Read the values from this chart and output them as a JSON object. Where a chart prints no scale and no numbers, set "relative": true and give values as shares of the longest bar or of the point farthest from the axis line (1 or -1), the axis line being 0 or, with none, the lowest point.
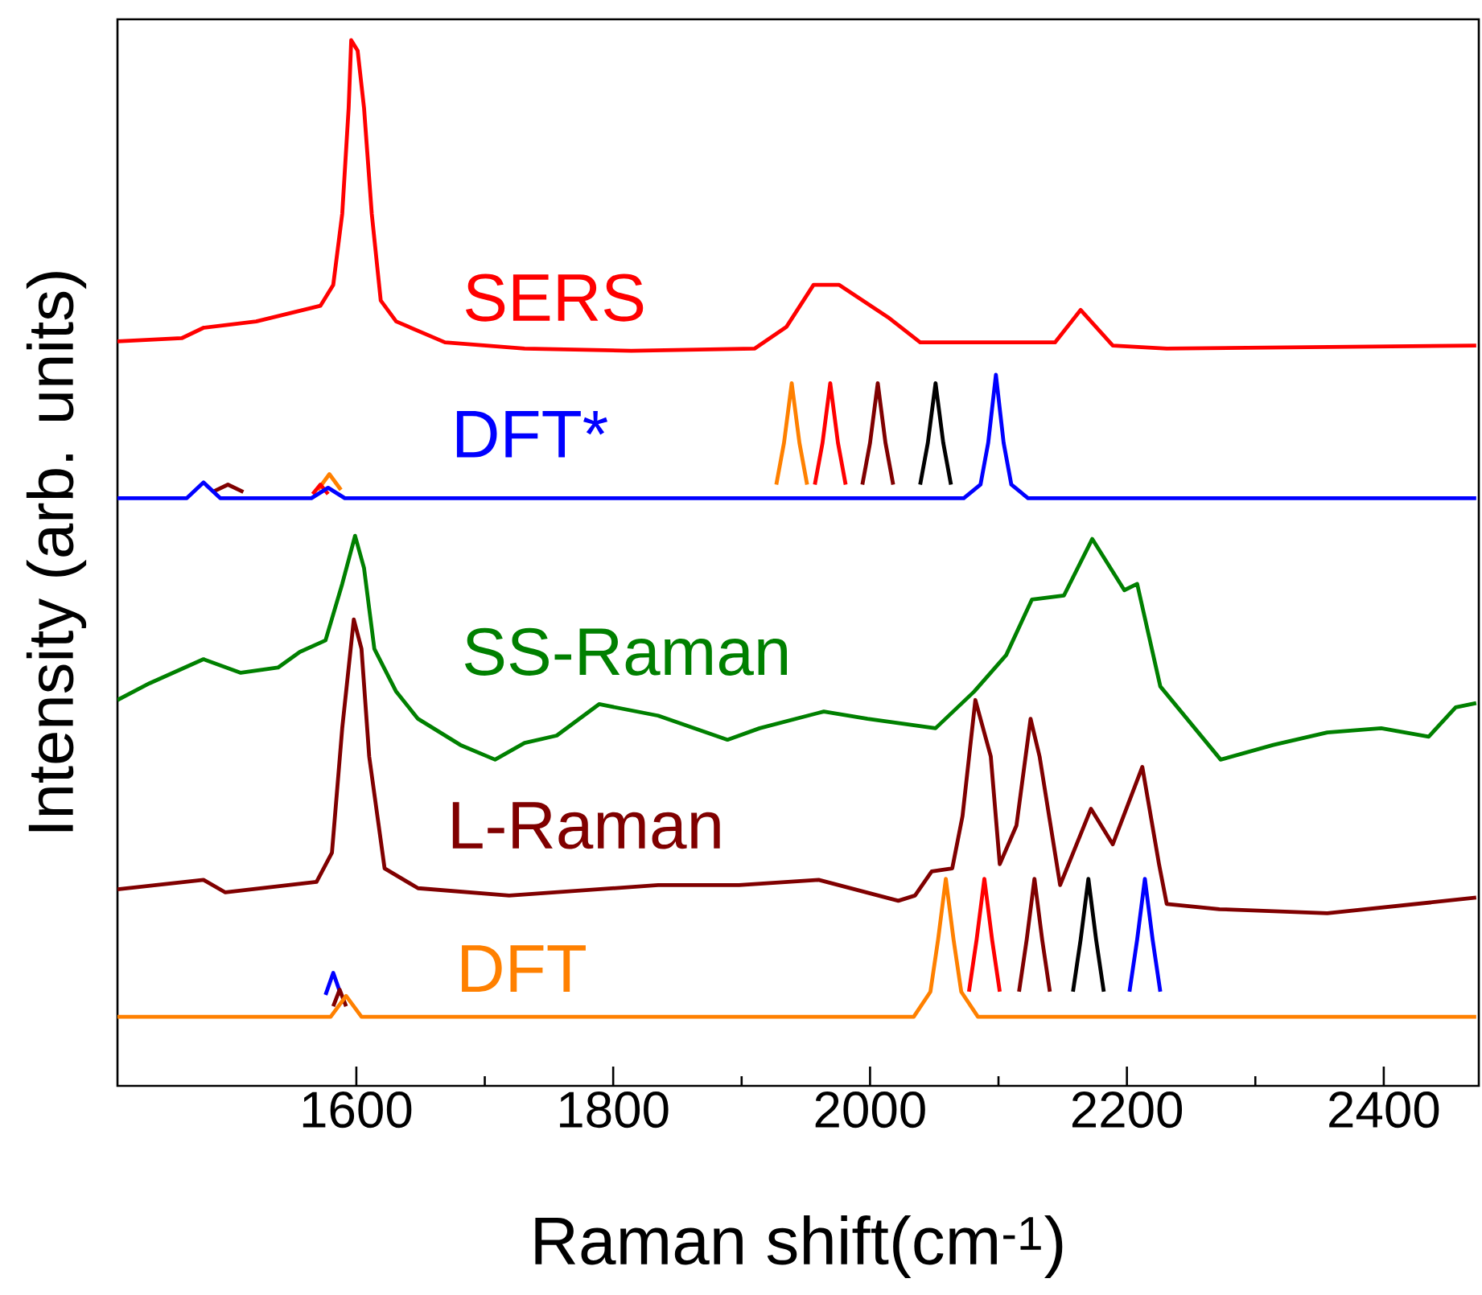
{
  "chart_data": {
    "type": "line",
    "xlabel": "Raman shift(cm$^{-1}$)",
    "ylabel": "Intensity (arb. units)",
    "relative": true,
    "xlim": [
      1414,
      2474
    ],
    "xticks": [
      1600,
      1800,
      2000,
      2200,
      2400
    ],
    "series": [
      {
        "name": "SERS",
        "color": "#ff0000",
        "x": [
          1414,
          1464,
          1481,
          1522,
          1572,
          1582,
          1589,
          1594,
          1596,
          1601,
          1606,
          1612,
          1619,
          1631,
          1669,
          1731,
          1814,
          1910,
          1935,
          1956,
          1976,
          2014,
          2039,
          2106,
          2144,
          2164,
          2189,
          2231,
          2472
        ],
        "values": [
          0.712,
          0.715,
          0.725,
          0.731,
          0.746,
          0.766,
          0.834,
          0.935,
          1.0,
          0.99,
          0.935,
          0.834,
          0.751,
          0.731,
          0.711,
          0.705,
          0.703,
          0.705,
          0.726,
          0.766,
          0.766,
          0.735,
          0.711,
          0.711,
          0.711,
          0.742,
          0.708,
          0.705,
          0.708
        ]
      },
      {
        "color": "#ff8000",
        "x": [
          1570,
          1579,
          1588,
          1700,
          1927,
          1933,
          1939,
          1945,
          1951
        ],
        "values": [
          0.57,
          0.585,
          0.57,
          null,
          0.575,
          0.615,
          0.672,
          0.615,
          0.575
        ]
      },
      {
        "color": "#ff0000",
        "x": [
          1566,
          1572,
          1578,
          1700,
          1957,
          1963,
          1969,
          1975,
          1981
        ],
        "values": [
          0.566,
          0.575,
          0.566,
          null,
          0.575,
          0.615,
          0.672,
          0.615,
          0.575
        ]
      },
      {
        "color": "#800000",
        "x": [
          1488,
          1500,
          1512,
          1700,
          1994,
          2000,
          2006,
          2012,
          2018
        ],
        "values": [
          0.568,
          0.575,
          0.568,
          null,
          0.575,
          0.615,
          0.672,
          0.615,
          0.575
        ]
      },
      {
        "color": "#000000",
        "x": [
          2039,
          2045,
          2051,
          2057,
          2063
        ],
        "values": [
          0.575,
          0.615,
          0.672,
          0.615,
          0.575
        ]
      },
      {
        "name": "DFT*",
        "color": "#0000ff",
        "x": [
          1414,
          1468,
          1481,
          1494,
          1565,
          1578,
          1591,
          2073,
          2086,
          2092,
          2098,
          2104,
          2110,
          2123,
          2472
        ],
        "values": [
          0.562,
          0.562,
          0.577,
          0.562,
          0.562,
          0.572,
          0.562,
          0.562,
          0.575,
          0.615,
          0.68,
          0.615,
          0.575,
          0.562,
          0.562
        ]
      },
      {
        "name": "SS-Raman",
        "color": "#008000",
        "x": [
          1414,
          1439,
          1481,
          1510,
          1539,
          1556,
          1576,
          1589,
          1599,
          1606,
          1614,
          1631,
          1648,
          1681,
          1708,
          1731,
          1756,
          1789,
          1835,
          1889,
          1914,
          1964,
          1998,
          2051,
          2081,
          2106,
          2126,
          2151,
          2173,
          2198,
          2208,
          2226,
          2273,
          2314,
          2356,
          2398,
          2435,
          2456,
          2472
        ],
        "values": [
          0.369,
          0.385,
          0.408,
          0.395,
          0.4,
          0.415,
          0.426,
          0.48,
          0.526,
          0.495,
          0.418,
          0.377,
          0.351,
          0.326,
          0.312,
          0.328,
          0.335,
          0.365,
          0.354,
          0.331,
          0.342,
          0.358,
          0.351,
          0.342,
          0.377,
          0.412,
          0.465,
          0.469,
          0.523,
          0.474,
          0.48,
          0.382,
          0.312,
          0.326,
          0.338,
          0.342,
          0.334,
          0.362,
          0.366
        ]
      },
      {
        "name": "L-Raman",
        "color": "#800000",
        "x": [
          1414,
          1481,
          1498,
          1569,
          1581,
          1589,
          1598,
          1604,
          1610,
          1622,
          1648,
          1719,
          1835,
          1898,
          1960,
          2022,
          2035,
          2048,
          2064,
          2072,
          2082,
          2094,
          2101,
          2114,
          2125,
          2132,
          2148,
          2172,
          2189,
          2212,
          2225,
          2231,
          2272,
          2356,
          2472
        ],
        "values": [
          0.188,
          0.197,
          0.185,
          0.195,
          0.223,
          0.342,
          0.446,
          0.418,
          0.315,
          0.208,
          0.189,
          0.182,
          0.192,
          0.192,
          0.197,
          0.177,
          0.182,
          0.205,
          0.208,
          0.258,
          0.369,
          0.315,
          0.212,
          0.249,
          0.351,
          0.315,
          0.192,
          0.265,
          0.231,
          0.305,
          0.212,
          0.174,
          0.169,
          0.165,
          0.18
        ]
      },
      {
        "color": "#0000ff",
        "x": [
          1576,
          1582,
          1588,
          1800,
          2202,
          2208,
          2214,
          2220,
          2226
        ],
        "values": [
          0.087,
          0.108,
          0.087,
          null,
          0.09,
          0.14,
          0.198,
          0.14,
          0.09
        ]
      },
      {
        "color": "#000000",
        "x": [
          2158,
          2164,
          2170,
          2176,
          2182
        ],
        "values": [
          0.09,
          0.14,
          0.198,
          0.14,
          0.09
        ]
      },
      {
        "color": "#800000",
        "x": [
          1582,
          1587,
          1592,
          1800,
          2116,
          2122,
          2128,
          2134,
          2140
        ],
        "values": [
          0.076,
          0.092,
          0.076,
          null,
          0.09,
          0.14,
          0.198,
          0.14,
          0.09
        ]
      },
      {
        "color": "#ff0000",
        "x": [
          2077,
          2083,
          2089,
          2095,
          2101
        ],
        "values": [
          0.09,
          0.14,
          0.198,
          0.14,
          0.09
        ]
      },
      {
        "name": "DFT",
        "color": "#ff8000",
        "x": [
          1414,
          1580,
          1592,
          1604,
          2034,
          2047,
          2053,
          2059,
          2065,
          2071,
          2084,
          2472
        ],
        "values": [
          0.066,
          0.066,
          0.086,
          0.066,
          0.066,
          0.09,
          0.14,
          0.198,
          0.14,
          0.09,
          0.066,
          0.066
        ]
      }
    ]
  }
}
